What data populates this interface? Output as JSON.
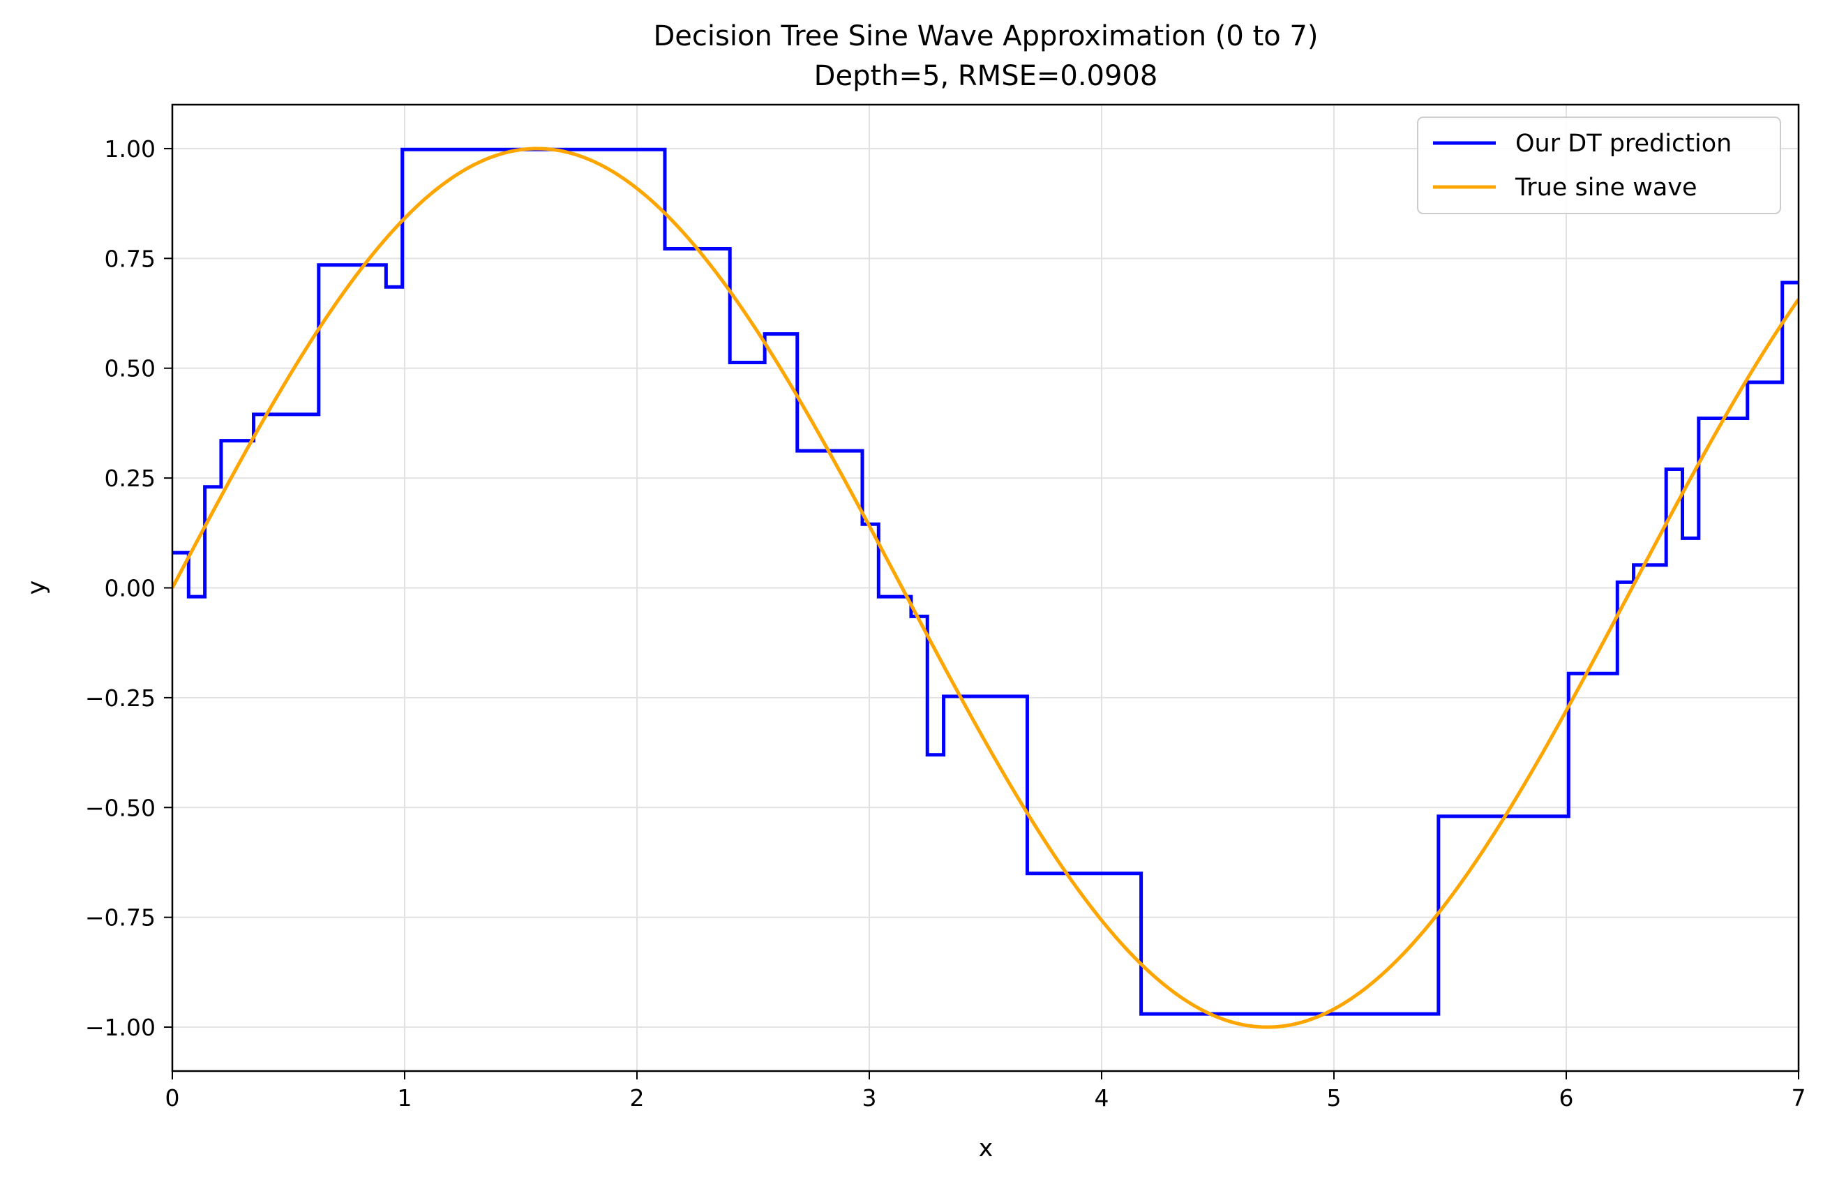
{
  "chart_data": {
    "type": "line",
    "title": "Decision Tree Sine Wave Approximation (0 to 7)",
    "subtitle": "Depth=5, RMSE=0.0908",
    "xlabel": "x",
    "ylabel": "y",
    "xlim": [
      0,
      7
    ],
    "ylim": [
      -1.1,
      1.1
    ],
    "x_ticks": [
      0,
      1,
      2,
      3,
      4,
      5,
      6,
      7
    ],
    "x_tick_labels": [
      "0",
      "1",
      "2",
      "3",
      "4",
      "5",
      "6",
      "7"
    ],
    "y_ticks": [
      1.0,
      0.75,
      0.5,
      0.25,
      0.0,
      -0.25,
      -0.5,
      -0.75,
      -1.0
    ],
    "y_tick_labels": [
      "1.00",
      "0.75",
      "0.50",
      "0.25",
      "0.00",
      "−0.25",
      "−0.50",
      "−0.75",
      "−1.00"
    ],
    "grid": true,
    "legend_position": "top-right",
    "series": [
      {
        "name": "Our DT prediction",
        "color": "#0000ff",
        "style": "step",
        "x": [
          0,
          0.07,
          0.14,
          0.21,
          0.35,
          0.63,
          0.92,
          0.99,
          2.12,
          2.4,
          2.55,
          2.69,
          2.97,
          3.04,
          3.18,
          3.25,
          3.32,
          3.68,
          4.17,
          5.45,
          6.01,
          6.22,
          6.29,
          6.43,
          6.5,
          6.57,
          6.78,
          6.93,
          7.0
        ],
        "y": [
          0.08,
          -0.02,
          0.23,
          0.335,
          0.395,
          0.735,
          0.685,
          0.998,
          0.772,
          0.513,
          0.578,
          0.312,
          0.145,
          -0.02,
          -0.065,
          -0.38,
          -0.247,
          -0.65,
          -0.97,
          -0.52,
          -0.195,
          0.013,
          0.052,
          0.27,
          0.113,
          0.386,
          0.468,
          0.695,
          0.695
        ]
      },
      {
        "name": "True sine wave",
        "color": "#ffa500",
        "style": "line",
        "function": "sin(x)",
        "x": [
          0,
          0.25,
          0.5,
          0.75,
          1.0,
          1.25,
          1.5,
          1.75,
          2.0,
          2.25,
          2.5,
          2.75,
          3.0,
          3.25,
          3.5,
          3.75,
          4.0,
          4.25,
          4.5,
          4.75,
          5.0,
          5.25,
          5.5,
          5.75,
          6.0,
          6.25,
          6.5,
          6.75,
          7.0
        ],
        "y": [
          0,
          0.247,
          0.479,
          0.682,
          0.841,
          0.949,
          0.997,
          0.984,
          0.909,
          0.778,
          0.598,
          0.382,
          0.141,
          -0.108,
          -0.351,
          -0.572,
          -0.757,
          -0.895,
          -0.978,
          -0.999,
          -0.959,
          -0.859,
          -0.706,
          -0.508,
          -0.279,
          -0.033,
          0.215,
          0.451,
          0.657
        ]
      }
    ]
  }
}
